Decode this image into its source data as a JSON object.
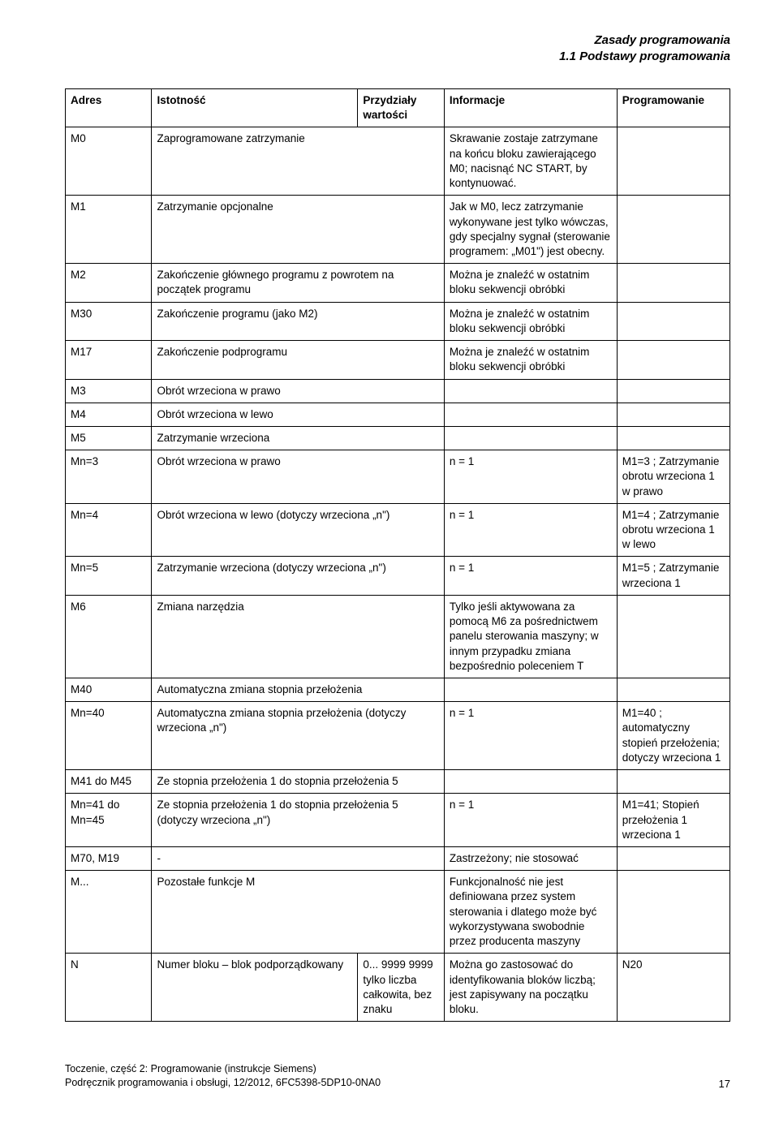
{
  "header": {
    "line1": "Zasady programowania",
    "line2": "1.1 Podstawy programowania"
  },
  "table": {
    "headers": {
      "adres": "Adres",
      "istotnosc": "Istotność",
      "przydzialy": "Przydziały wartości",
      "informacje": "Informacje",
      "programowanie": "Programowanie"
    },
    "rows": [
      {
        "a": "M0",
        "i": "Zaprogramowane zatrzymanie",
        "p": "",
        "inf": "Skrawanie zostaje zatrzymane na końcu bloku zawierającego M0; nacisnąć NC START, by kontynuować.",
        "pr": ""
      },
      {
        "a": "M1",
        "i": "Zatrzymanie opcjonalne",
        "p": "",
        "inf": "Jak w M0, lecz zatrzymanie wykonywane jest tylko wówczas, gdy specjalny sygnał (sterowanie programem: „M01\") jest obecny.",
        "pr": ""
      },
      {
        "a": "M2",
        "i": "Zakończenie głównego programu z powrotem na początek programu",
        "p": "",
        "inf": "Można je znaleźć w ostatnim bloku sekwencji obróbki",
        "pr": ""
      },
      {
        "a": "M30",
        "i": "Zakończenie programu (jako M2)",
        "p": "",
        "inf": "Można je znaleźć w ostatnim bloku sekwencji obróbki",
        "pr": ""
      },
      {
        "a": "M17",
        "i": "Zakończenie podprogramu",
        "p": "",
        "inf": "Można je znaleźć w ostatnim bloku sekwencji obróbki",
        "pr": ""
      },
      {
        "a": "M3",
        "i": "Obrót wrzeciona w prawo",
        "p": "",
        "inf": "",
        "pr": ""
      },
      {
        "a": "M4",
        "i": "Obrót wrzeciona w lewo",
        "p": "",
        "inf": "",
        "pr": ""
      },
      {
        "a": "M5",
        "i": "Zatrzymanie wrzeciona",
        "p": "",
        "inf": "",
        "pr": ""
      },
      {
        "a": "Mn=3",
        "i": "Obrót wrzeciona w prawo",
        "p": "",
        "inf": "n = 1",
        "pr": "M1=3 ; Zatrzymanie obrotu wrzeciona 1 w prawo"
      },
      {
        "a": "Mn=4",
        "i": "Obrót wrzeciona w lewo (dotyczy wrzeciona „n\")",
        "p": "",
        "inf": "n = 1",
        "pr": "M1=4 ; Zatrzymanie obrotu wrzeciona 1 w lewo"
      },
      {
        "a": "Mn=5",
        "i": "Zatrzymanie wrzeciona (dotyczy wrzeciona „n\")",
        "p": "",
        "inf": "n = 1",
        "pr": "M1=5 ; Zatrzymanie wrzeciona 1"
      },
      {
        "a": "M6",
        "i": "Zmiana narzędzia",
        "p": "",
        "inf": "Tylko jeśli aktywowana za pomocą M6 za pośrednictwem panelu sterowania maszyny; w innym przypadku zmiana bezpośrednio poleceniem T",
        "pr": ""
      },
      {
        "a": "M40",
        "i": "Automatyczna zmiana stopnia przełożenia",
        "p": "",
        "inf": "",
        "pr": ""
      },
      {
        "a": "Mn=40",
        "i": "Automatyczna zmiana stopnia przełożenia (dotyczy wrzeciona „n\")",
        "p": "",
        "inf": "n = 1",
        "pr": "M1=40 ; automatyczny stopień przełożenia; dotyczy wrzeciona 1"
      },
      {
        "a": "M41 do M45",
        "i": "Ze stopnia przełożenia 1 do stopnia przełożenia 5",
        "p": "",
        "inf": "",
        "pr": ""
      },
      {
        "a": "Mn=41 do Mn=45",
        "i": "Ze stopnia przełożenia 1 do stopnia przełożenia 5 (dotyczy wrzeciona „n\")",
        "p": "",
        "inf": "n = 1",
        "pr": "M1=41; Stopień przełożenia 1 wrzeciona 1"
      },
      {
        "a": "M70, M19",
        "i": "-",
        "p": "",
        "inf": "Zastrzeżony; nie stosować",
        "pr": ""
      },
      {
        "a": "M...",
        "i": "Pozostałe funkcje M",
        "p": "",
        "inf": "Funkcjonalność nie jest definiowana przez system sterowania i dlatego może być wykorzystywana swobodnie przez producenta maszyny",
        "pr": ""
      },
      {
        "a": "N",
        "i": "Numer bloku – blok podporządkowany",
        "p": "0... 9999 9999 tylko liczba całkowita, bez znaku",
        "inf": "Można go zastosować do identyfikowania bloków liczbą; jest zapisywany na początku bloku.",
        "pr": "N20"
      }
    ]
  },
  "footer": {
    "line1": "Toczenie, część 2: Programowanie (instrukcje Siemens)",
    "line2": "Podręcznik programowania i obsługi, 12/2012, 6FC5398-5DP10-0NA0",
    "page": "17"
  }
}
